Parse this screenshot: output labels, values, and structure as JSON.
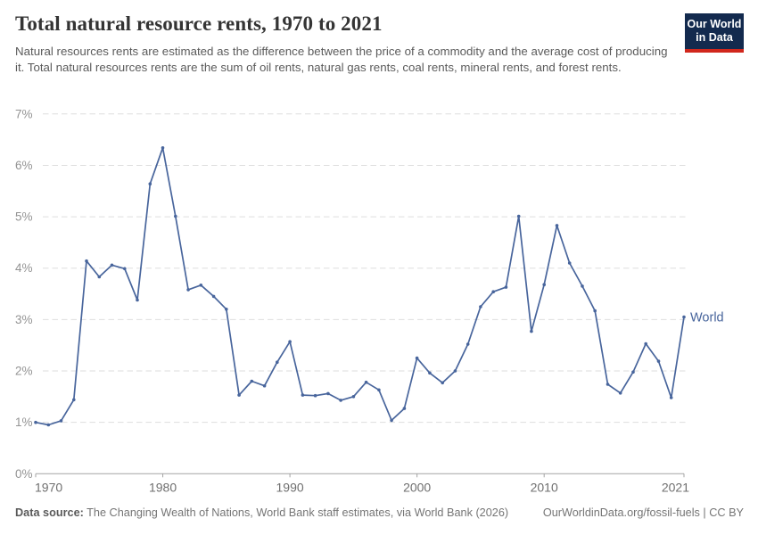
{
  "header": {
    "title": "Total natural resource rents, 1970 to 2021",
    "subtitle": "Natural resources rents are estimated as the difference between the price of a commodity and the average cost of producing it. Total natural resources rents are the sum of oil rents, natural gas rents, coal rents, mineral rents, and forest rents.",
    "logo": {
      "line1": "Our World",
      "line2": "in Data",
      "bg_color": "#132a4e",
      "accent_color": "#d1271c"
    }
  },
  "chart_data": {
    "type": "line",
    "title": "Total natural resource rents, 1970 to 2021",
    "xlabel": "",
    "ylabel": "",
    "xlim": [
      1970,
      2021
    ],
    "ylim": [
      0,
      7
    ],
    "grid": true,
    "x_ticks": [
      1970,
      1980,
      1990,
      2000,
      2010,
      2021
    ],
    "y_ticks": [
      0,
      1,
      2,
      3,
      4,
      5,
      6,
      7
    ],
    "y_tick_suffix": "%",
    "legend_position": "end-of-line",
    "series": [
      {
        "name": "World",
        "color": "#48659c",
        "years": [
          1970,
          1971,
          1972,
          1973,
          1974,
          1975,
          1976,
          1977,
          1978,
          1979,
          1980,
          1981,
          1982,
          1983,
          1984,
          1985,
          1986,
          1987,
          1988,
          1989,
          1990,
          1991,
          1992,
          1993,
          1994,
          1995,
          1996,
          1997,
          1998,
          1999,
          2000,
          2001,
          2002,
          2003,
          2004,
          2005,
          2006,
          2007,
          2008,
          2009,
          2010,
          2011,
          2012,
          2013,
          2014,
          2015,
          2016,
          2017,
          2018,
          2019,
          2020,
          2021
        ],
        "values": [
          1.0,
          0.95,
          1.03,
          1.44,
          4.14,
          3.83,
          4.06,
          3.99,
          3.38,
          5.64,
          6.34,
          5.01,
          3.58,
          3.67,
          3.45,
          3.2,
          1.53,
          1.8,
          1.71,
          2.17,
          2.57,
          1.53,
          1.52,
          1.56,
          1.43,
          1.5,
          1.78,
          1.63,
          1.04,
          1.27,
          2.25,
          1.96,
          1.77,
          2.0,
          2.52,
          3.25,
          3.54,
          3.63,
          5.01,
          2.77,
          3.68,
          4.83,
          4.1,
          3.65,
          3.17,
          1.74,
          1.57,
          1.98,
          2.53,
          2.19,
          1.48,
          3.05
        ]
      }
    ],
    "colors": {
      "gridline": "#dedede",
      "axis": "#a3a3a3",
      "y_tick_label": "#949494",
      "x_tick_label": "#6f6f6f"
    }
  },
  "footer": {
    "datasource_label": "Data source:",
    "datasource_text": " The Changing Wealth of Nations, World Bank staff estimates, via World Bank (2026)",
    "credit_text": "OurWorldinData.org/fossil-fuels | CC BY"
  }
}
